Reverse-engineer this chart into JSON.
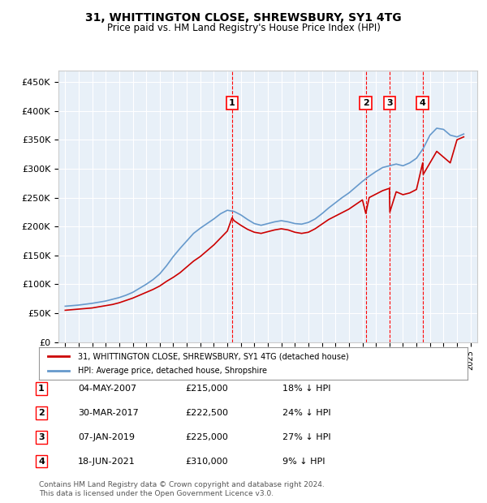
{
  "title": "31, WHITTINGTON CLOSE, SHREWSBURY, SY1 4TG",
  "subtitle": "Price paid vs. HM Land Registry's House Price Index (HPI)",
  "ylabel": "",
  "ylim": [
    0,
    470000
  ],
  "yticks": [
    0,
    50000,
    100000,
    150000,
    200000,
    250000,
    300000,
    350000,
    400000,
    450000
  ],
  "ytick_labels": [
    "£0",
    "£50K",
    "£100K",
    "£150K",
    "£200K",
    "£250K",
    "£300K",
    "£350K",
    "£400K",
    "£450K"
  ],
  "background_color": "#e8f0f8",
  "plot_bg": "#e8f0f8",
  "hpi_color": "#6699cc",
  "price_color": "#cc0000",
  "legend_label_price": "31, WHITTINGTON CLOSE, SHREWSBURY, SY1 4TG (detached house)",
  "legend_label_hpi": "HPI: Average price, detached house, Shropshire",
  "transactions": [
    {
      "num": 1,
      "date": "04-MAY-2007",
      "price": 215000,
      "year": 2007.35,
      "hpi_pct": "18%"
    },
    {
      "num": 2,
      "date": "30-MAR-2017",
      "price": 222500,
      "year": 2017.25,
      "hpi_pct": "24%"
    },
    {
      "num": 3,
      "date": "07-JAN-2019",
      "price": 225000,
      "year": 2019.03,
      "hpi_pct": "27%"
    },
    {
      "num": 4,
      "date": "18-JUN-2021",
      "price": 310000,
      "year": 2021.46,
      "hpi_pct": "9%"
    }
  ],
  "footnote": "Contains HM Land Registry data © Crown copyright and database right 2024.\nThis data is licensed under the Open Government Licence v3.0.",
  "hpi_years": [
    1995,
    1995.5,
    1996,
    1996.5,
    1997,
    1997.5,
    1998,
    1998.5,
    1999,
    1999.5,
    2000,
    2000.5,
    2001,
    2001.5,
    2002,
    2002.5,
    2003,
    2003.5,
    2004,
    2004.5,
    2005,
    2005.5,
    2006,
    2006.5,
    2007,
    2007.5,
    2008,
    2008.5,
    2009,
    2009.5,
    2010,
    2010.5,
    2011,
    2011.5,
    2012,
    2012.5,
    2013,
    2013.5,
    2014,
    2014.5,
    2015,
    2015.5,
    2016,
    2016.5,
    2017,
    2017.5,
    2018,
    2018.5,
    2019,
    2019.5,
    2020,
    2020.5,
    2021,
    2021.5,
    2022,
    2022.5,
    2023,
    2023.5,
    2024,
    2024.5
  ],
  "hpi_values": [
    62000,
    63000,
    64000,
    65500,
    67000,
    69000,
    71000,
    74000,
    77000,
    81000,
    86000,
    93000,
    100000,
    108000,
    118000,
    132000,
    148000,
    162000,
    175000,
    188000,
    197000,
    205000,
    213000,
    222000,
    228000,
    226000,
    220000,
    212000,
    205000,
    202000,
    205000,
    208000,
    210000,
    208000,
    205000,
    204000,
    207000,
    213000,
    222000,
    232000,
    241000,
    250000,
    258000,
    268000,
    278000,
    287000,
    295000,
    302000,
    305000,
    308000,
    305000,
    310000,
    318000,
    335000,
    358000,
    370000,
    368000,
    358000,
    355000,
    360000
  ],
  "price_years": [
    1995,
    1995.5,
    1996,
    1996.5,
    1997,
    1997.5,
    1998,
    1998.5,
    1999,
    1999.5,
    2000,
    2000.5,
    2001,
    2001.5,
    2002,
    2002.5,
    2003,
    2003.5,
    2004,
    2004.5,
    2005,
    2005.5,
    2006,
    2006.5,
    2007,
    2007.35,
    2007.5,
    2008,
    2008.5,
    2009,
    2009.5,
    2010,
    2010.5,
    2011,
    2011.5,
    2012,
    2012.5,
    2013,
    2013.5,
    2014,
    2014.5,
    2015,
    2015.5,
    2016,
    2016.5,
    2017,
    2017.25,
    2017.5,
    2018,
    2018.5,
    2019,
    2019.03,
    2019.5,
    2020,
    2020.5,
    2021,
    2021.46,
    2021.5,
    2022,
    2022.5,
    2023,
    2023.5,
    2024,
    2024.5
  ],
  "price_values": [
    55000,
    56000,
    57000,
    58000,
    59000,
    61000,
    63000,
    65000,
    68000,
    72000,
    76000,
    81000,
    86000,
    91000,
    97000,
    105000,
    112000,
    120000,
    130000,
    140000,
    148000,
    158000,
    168000,
    180000,
    192000,
    215000,
    210000,
    202000,
    195000,
    190000,
    188000,
    191000,
    194000,
    196000,
    194000,
    190000,
    188000,
    190000,
    196000,
    204000,
    212000,
    218000,
    224000,
    230000,
    238000,
    246000,
    222500,
    250000,
    256000,
    262000,
    266000,
    225000,
    260000,
    255000,
    258000,
    264000,
    310000,
    290000,
    310000,
    330000,
    320000,
    310000,
    350000,
    355000
  ]
}
